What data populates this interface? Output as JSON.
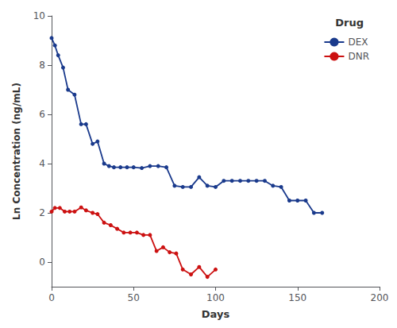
{
  "chart_data": {
    "type": "line",
    "xlabel": "Days",
    "ylabel": "Ln Concentration (ng/mL)",
    "xlim": [
      0,
      200
    ],
    "ylim": [
      -1.0,
      10.0
    ],
    "xticks": [
      0,
      50,
      100,
      150,
      200
    ],
    "yticks": [
      0,
      2,
      4,
      6,
      8,
      10
    ],
    "grid": false,
    "legend": "upper right",
    "legend_title": "Drug",
    "marker": "circle",
    "line_style": "solid",
    "series": [
      {
        "name": "DEX",
        "color": "#1a3a8c",
        "x": [
          0,
          2,
          4,
          7,
          10,
          14,
          18,
          21,
          25,
          28,
          32,
          35,
          38,
          42,
          46,
          50,
          55,
          60,
          65,
          70,
          75,
          80,
          85,
          90,
          95,
          100,
          105,
          110,
          115,
          120,
          125,
          130,
          135,
          140,
          145,
          150,
          155,
          160,
          165
        ],
        "values": [
          9.1,
          8.8,
          8.4,
          7.9,
          7.0,
          6.8,
          5.6,
          5.6,
          4.8,
          4.9,
          4.0,
          3.9,
          3.85,
          3.85,
          3.85,
          3.85,
          3.82,
          3.9,
          3.9,
          3.85,
          3.1,
          3.05,
          3.05,
          3.45,
          3.1,
          3.05,
          3.3,
          3.3,
          3.3,
          3.3,
          3.3,
          3.3,
          3.1,
          3.05,
          2.5,
          2.5,
          2.5,
          2.0,
          2.0
        ]
      },
      {
        "name": "DNR",
        "color": "#cc1111",
        "x": [
          0,
          2,
          5,
          8,
          11,
          14,
          18,
          21,
          25,
          28,
          32,
          36,
          40,
          44,
          48,
          52,
          56,
          60,
          64,
          68,
          72,
          76,
          80,
          85,
          90,
          95,
          100
        ],
        "values": [
          2.05,
          2.2,
          2.2,
          2.05,
          2.05,
          2.05,
          2.22,
          2.1,
          2.0,
          1.95,
          1.6,
          1.5,
          1.35,
          1.2,
          1.2,
          1.2,
          1.1,
          1.1,
          0.45,
          0.6,
          0.4,
          0.35,
          -0.3,
          -0.5,
          -0.2,
          -0.6,
          -0.3
        ]
      }
    ]
  }
}
